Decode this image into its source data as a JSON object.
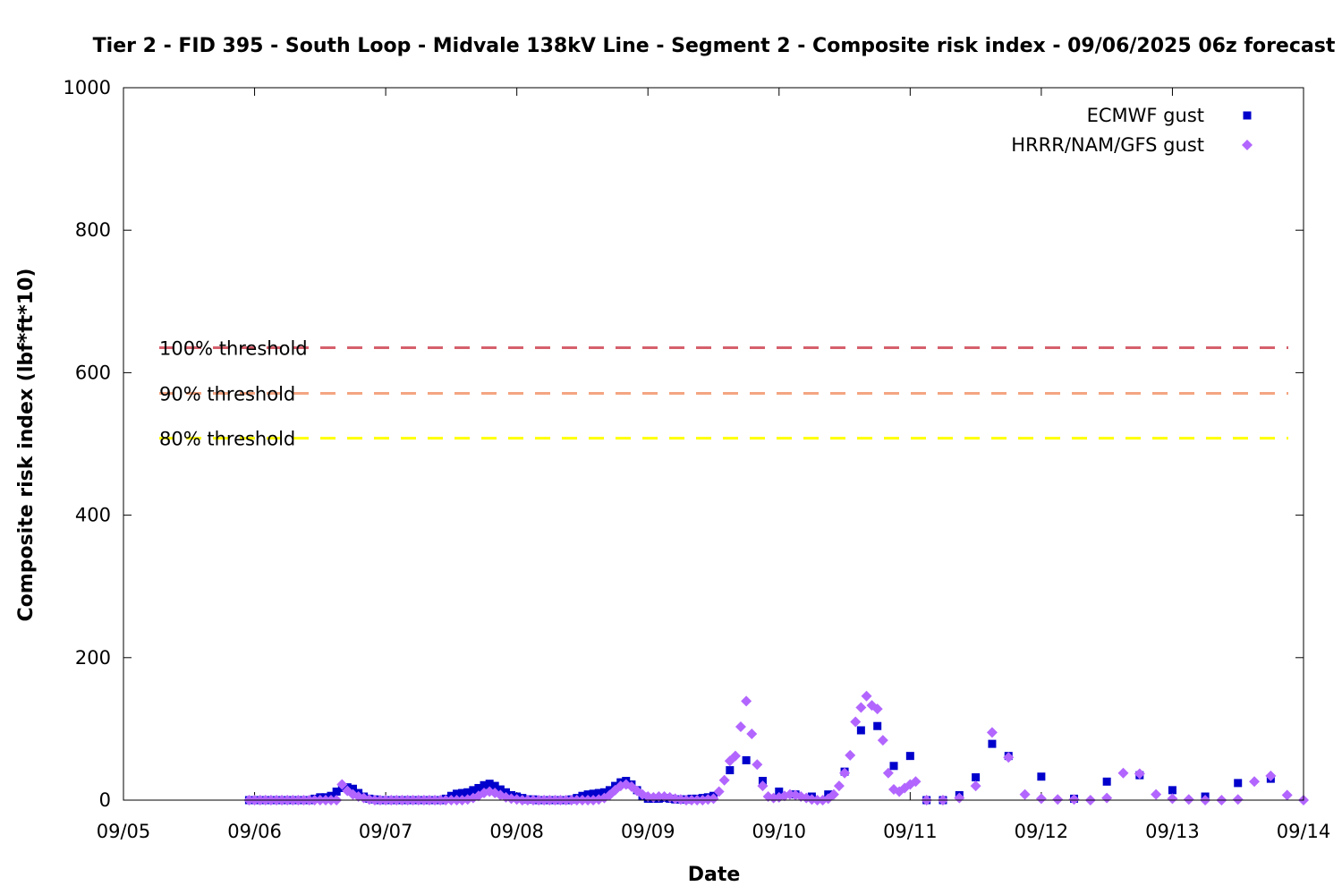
{
  "chart_data": {
    "type": "scatter",
    "title": "Tier 2 - FID 395 - South Loop - Midvale 138kV Line - Segment 2 - Composite risk index - 09/06/2025 06z forecast",
    "xlabel": "Date",
    "ylabel": "Composite risk index (lbf*ft*10)",
    "ylim": [
      0,
      1000
    ],
    "xlim": [
      "09/05 00:00",
      "09/14 00:00"
    ],
    "x_unit": "days after 09/05 00:00",
    "x_ticks": [
      {
        "label": "09/05",
        "x": 0
      },
      {
        "label": "09/06",
        "x": 1
      },
      {
        "label": "09/07",
        "x": 2
      },
      {
        "label": "09/08",
        "x": 3
      },
      {
        "label": "09/09",
        "x": 4
      },
      {
        "label": "09/10",
        "x": 5
      },
      {
        "label": "09/11",
        "x": 6
      },
      {
        "label": "09/12",
        "x": 7
      },
      {
        "label": "09/13",
        "x": 8
      },
      {
        "label": "09/14",
        "x": 9
      }
    ],
    "y_ticks": [
      0,
      200,
      400,
      600,
      800,
      1000
    ],
    "grid": false,
    "legend_position": "top-right",
    "thresholds": [
      {
        "label": "100% threshold",
        "value": 635,
        "color": "#d6606d"
      },
      {
        "label": "90% threshold",
        "value": 571,
        "color": "#f4a582"
      },
      {
        "label": "80% threshold",
        "value": 508,
        "color": "#ffff00"
      }
    ],
    "series": [
      {
        "name": "ECMWF gust",
        "color": "#0000cc",
        "marker": "square",
        "points": [
          [
            0.958,
            0
          ],
          [
            1.0,
            0
          ],
          [
            1.042,
            0
          ],
          [
            1.083,
            0
          ],
          [
            1.125,
            0
          ],
          [
            1.167,
            0
          ],
          [
            1.208,
            0
          ],
          [
            1.25,
            0
          ],
          [
            1.292,
            0
          ],
          [
            1.333,
            0
          ],
          [
            1.375,
            0
          ],
          [
            1.417,
            0
          ],
          [
            1.458,
            2
          ],
          [
            1.5,
            4
          ],
          [
            1.542,
            4
          ],
          [
            1.583,
            6
          ],
          [
            1.625,
            12
          ],
          [
            1.667,
            17
          ],
          [
            1.708,
            18
          ],
          [
            1.75,
            16
          ],
          [
            1.792,
            10
          ],
          [
            1.833,
            5
          ],
          [
            1.875,
            2
          ],
          [
            1.917,
            1
          ],
          [
            1.958,
            0
          ],
          [
            2.0,
            0
          ],
          [
            2.042,
            0
          ],
          [
            2.083,
            0
          ],
          [
            2.125,
            0
          ],
          [
            2.167,
            0
          ],
          [
            2.208,
            0
          ],
          [
            2.25,
            0
          ],
          [
            2.292,
            0
          ],
          [
            2.333,
            0
          ],
          [
            2.375,
            0
          ],
          [
            2.417,
            0
          ],
          [
            2.458,
            2
          ],
          [
            2.5,
            6
          ],
          [
            2.542,
            9
          ],
          [
            2.583,
            10
          ],
          [
            2.625,
            11
          ],
          [
            2.667,
            14
          ],
          [
            2.708,
            17
          ],
          [
            2.75,
            21
          ],
          [
            2.792,
            23
          ],
          [
            2.833,
            20
          ],
          [
            2.875,
            15
          ],
          [
            2.917,
            11
          ],
          [
            2.958,
            7
          ],
          [
            3.0,
            5
          ],
          [
            3.042,
            3
          ],
          [
            3.083,
            1
          ],
          [
            3.125,
            1
          ],
          [
            3.167,
            0
          ],
          [
            3.208,
            0
          ],
          [
            3.25,
            0
          ],
          [
            3.292,
            0
          ],
          [
            3.333,
            0
          ],
          [
            3.375,
            0
          ],
          [
            3.417,
            1
          ],
          [
            3.458,
            3
          ],
          [
            3.5,
            6
          ],
          [
            3.542,
            8
          ],
          [
            3.583,
            9
          ],
          [
            3.625,
            10
          ],
          [
            3.667,
            11
          ],
          [
            3.708,
            14
          ],
          [
            3.75,
            20
          ],
          [
            3.792,
            25
          ],
          [
            3.833,
            27
          ],
          [
            3.875,
            22
          ],
          [
            3.917,
            14
          ],
          [
            3.958,
            5
          ],
          [
            4.0,
            2
          ],
          [
            4.042,
            2
          ],
          [
            4.083,
            2
          ],
          [
            4.125,
            3
          ],
          [
            4.167,
            2
          ],
          [
            4.208,
            1
          ],
          [
            4.25,
            1
          ],
          [
            4.292,
            1
          ],
          [
            4.333,
            2
          ],
          [
            4.375,
            2
          ],
          [
            4.417,
            3
          ],
          [
            4.458,
            4
          ],
          [
            4.5,
            6
          ],
          [
            4.625,
            42
          ],
          [
            4.75,
            56
          ],
          [
            4.875,
            27
          ],
          [
            5.0,
            12
          ],
          [
            5.125,
            8
          ],
          [
            5.25,
            5
          ],
          [
            5.375,
            8
          ],
          [
            5.5,
            40
          ],
          [
            5.625,
            98
          ],
          [
            5.75,
            104
          ],
          [
            5.875,
            48
          ],
          [
            6.0,
            62
          ],
          [
            6.125,
            0
          ],
          [
            6.25,
            0
          ],
          [
            6.375,
            7
          ],
          [
            6.5,
            32
          ],
          [
            6.625,
            79
          ],
          [
            6.75,
            62
          ],
          [
            7.0,
            33
          ],
          [
            7.25,
            2
          ],
          [
            7.5,
            26
          ],
          [
            7.75,
            35
          ],
          [
            8.0,
            14
          ],
          [
            8.25,
            5
          ],
          [
            8.5,
            24
          ],
          [
            8.75,
            30
          ]
        ]
      },
      {
        "name": "HRRR/NAM/GFS gust",
        "color": "#b266ff",
        "marker": "diamond",
        "points": [
          [
            0.958,
            0
          ],
          [
            1.0,
            0
          ],
          [
            1.042,
            0
          ],
          [
            1.083,
            0
          ],
          [
            1.125,
            0
          ],
          [
            1.167,
            0
          ],
          [
            1.208,
            0
          ],
          [
            1.25,
            0
          ],
          [
            1.292,
            0
          ],
          [
            1.333,
            0
          ],
          [
            1.375,
            0
          ],
          [
            1.417,
            0
          ],
          [
            1.458,
            0
          ],
          [
            1.5,
            0
          ],
          [
            1.542,
            0
          ],
          [
            1.583,
            0
          ],
          [
            1.625,
            0
          ],
          [
            1.667,
            22
          ],
          [
            1.708,
            13
          ],
          [
            1.75,
            8
          ],
          [
            1.792,
            5
          ],
          [
            1.833,
            3
          ],
          [
            1.875,
            1
          ],
          [
            1.917,
            0
          ],
          [
            1.958,
            0
          ],
          [
            2.0,
            0
          ],
          [
            2.042,
            0
          ],
          [
            2.083,
            0
          ],
          [
            2.125,
            0
          ],
          [
            2.167,
            0
          ],
          [
            2.208,
            0
          ],
          [
            2.25,
            0
          ],
          [
            2.292,
            0
          ],
          [
            2.333,
            0
          ],
          [
            2.375,
            0
          ],
          [
            2.417,
            0
          ],
          [
            2.458,
            0
          ],
          [
            2.5,
            0
          ],
          [
            2.542,
            0
          ],
          [
            2.583,
            0
          ],
          [
            2.625,
            1
          ],
          [
            2.667,
            3
          ],
          [
            2.708,
            6
          ],
          [
            2.75,
            10
          ],
          [
            2.792,
            12
          ],
          [
            2.833,
            10
          ],
          [
            2.875,
            7
          ],
          [
            2.917,
            4
          ],
          [
            2.958,
            2
          ],
          [
            3.0,
            1
          ],
          [
            3.042,
            0
          ],
          [
            3.083,
            0
          ],
          [
            3.125,
            0
          ],
          [
            3.167,
            0
          ],
          [
            3.208,
            0
          ],
          [
            3.25,
            0
          ],
          [
            3.292,
            0
          ],
          [
            3.333,
            0
          ],
          [
            3.375,
            0
          ],
          [
            3.417,
            0
          ],
          [
            3.458,
            0
          ],
          [
            3.5,
            0
          ],
          [
            3.542,
            0
          ],
          [
            3.583,
            0
          ],
          [
            3.625,
            1
          ],
          [
            3.667,
            3
          ],
          [
            3.708,
            7
          ],
          [
            3.75,
            14
          ],
          [
            3.792,
            20
          ],
          [
            3.833,
            22
          ],
          [
            3.875,
            19
          ],
          [
            3.917,
            13
          ],
          [
            3.958,
            8
          ],
          [
            4.0,
            5
          ],
          [
            4.042,
            4
          ],
          [
            4.083,
            5
          ],
          [
            4.125,
            5
          ],
          [
            4.167,
            4
          ],
          [
            4.208,
            2
          ],
          [
            4.25,
            1
          ],
          [
            4.292,
            0
          ],
          [
            4.333,
            0
          ],
          [
            4.375,
            0
          ],
          [
            4.417,
            0
          ],
          [
            4.458,
            1
          ],
          [
            4.5,
            2
          ],
          [
            4.542,
            12
          ],
          [
            4.583,
            28
          ],
          [
            4.625,
            55
          ],
          [
            4.667,
            62
          ],
          [
            4.708,
            103
          ],
          [
            4.75,
            139
          ],
          [
            4.792,
            93
          ],
          [
            4.833,
            50
          ],
          [
            4.875,
            20
          ],
          [
            4.917,
            5
          ],
          [
            4.958,
            3
          ],
          [
            5.0,
            4
          ],
          [
            5.042,
            6
          ],
          [
            5.083,
            8
          ],
          [
            5.125,
            7
          ],
          [
            5.167,
            5
          ],
          [
            5.208,
            3
          ],
          [
            5.25,
            1
          ],
          [
            5.292,
            0
          ],
          [
            5.333,
            0
          ],
          [
            5.375,
            2
          ],
          [
            5.417,
            8
          ],
          [
            5.458,
            20
          ],
          [
            5.5,
            38
          ],
          [
            5.542,
            63
          ],
          [
            5.583,
            110
          ],
          [
            5.625,
            130
          ],
          [
            5.667,
            146
          ],
          [
            5.708,
            133
          ],
          [
            5.75,
            128
          ],
          [
            5.792,
            84
          ],
          [
            5.833,
            38
          ],
          [
            5.875,
            15
          ],
          [
            5.917,
            12
          ],
          [
            5.958,
            17
          ],
          [
            6.0,
            22
          ],
          [
            6.042,
            26
          ],
          [
            6.125,
            0
          ],
          [
            6.25,
            0
          ],
          [
            6.375,
            3
          ],
          [
            6.5,
            20
          ],
          [
            6.625,
            95
          ],
          [
            6.75,
            60
          ],
          [
            6.875,
            8
          ],
          [
            7.0,
            2
          ],
          [
            7.125,
            1
          ],
          [
            7.25,
            1
          ],
          [
            7.375,
            0
          ],
          [
            7.5,
            3
          ],
          [
            7.625,
            38
          ],
          [
            7.75,
            37
          ],
          [
            7.875,
            8
          ],
          [
            8.0,
            2
          ],
          [
            8.125,
            1
          ],
          [
            8.25,
            0
          ],
          [
            8.375,
            0
          ],
          [
            8.5,
            1
          ],
          [
            8.625,
            26
          ],
          [
            8.75,
            34
          ],
          [
            8.875,
            7
          ],
          [
            9.0,
            0
          ]
        ]
      }
    ]
  }
}
